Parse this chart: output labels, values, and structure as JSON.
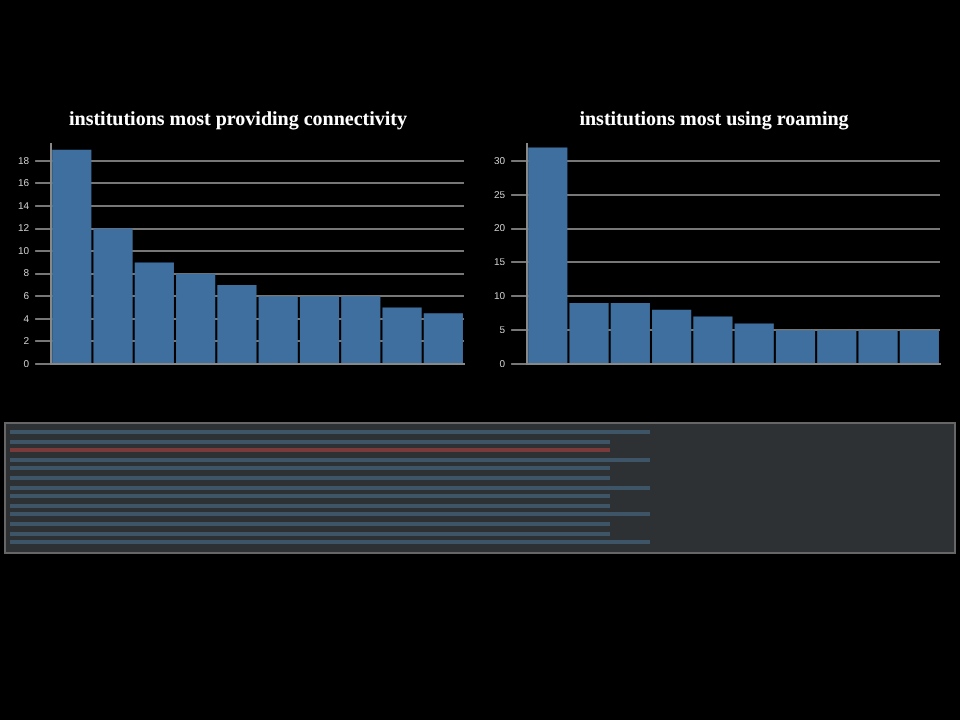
{
  "chart_data": [
    {
      "type": "bar",
      "title": "institutions most providing connectivity",
      "categories": [
        null,
        null,
        null,
        null,
        null,
        null,
        null,
        null,
        null,
        null
      ],
      "values": [
        19,
        12,
        9,
        8,
        7,
        6,
        6,
        6,
        5,
        4.5
      ],
      "color": "#3f6f9f",
      "ylim": [
        0,
        19.5
      ],
      "yticks": [
        0,
        2,
        4,
        6,
        8,
        10,
        12,
        14,
        16,
        18
      ],
      "grid": "y"
    },
    {
      "type": "bar",
      "title": "institutions most using roaming",
      "categories": [
        null,
        null,
        null,
        null,
        null,
        null,
        null,
        null,
        null,
        null
      ],
      "values": [
        32,
        9,
        9,
        8,
        7,
        6,
        5,
        5,
        5,
        5
      ],
      "color": "#3f6f9f",
      "ylim": [
        0,
        32.5
      ],
      "yticks": [
        0,
        5,
        10,
        15,
        20,
        25,
        30
      ],
      "grid": "y"
    }
  ]
}
